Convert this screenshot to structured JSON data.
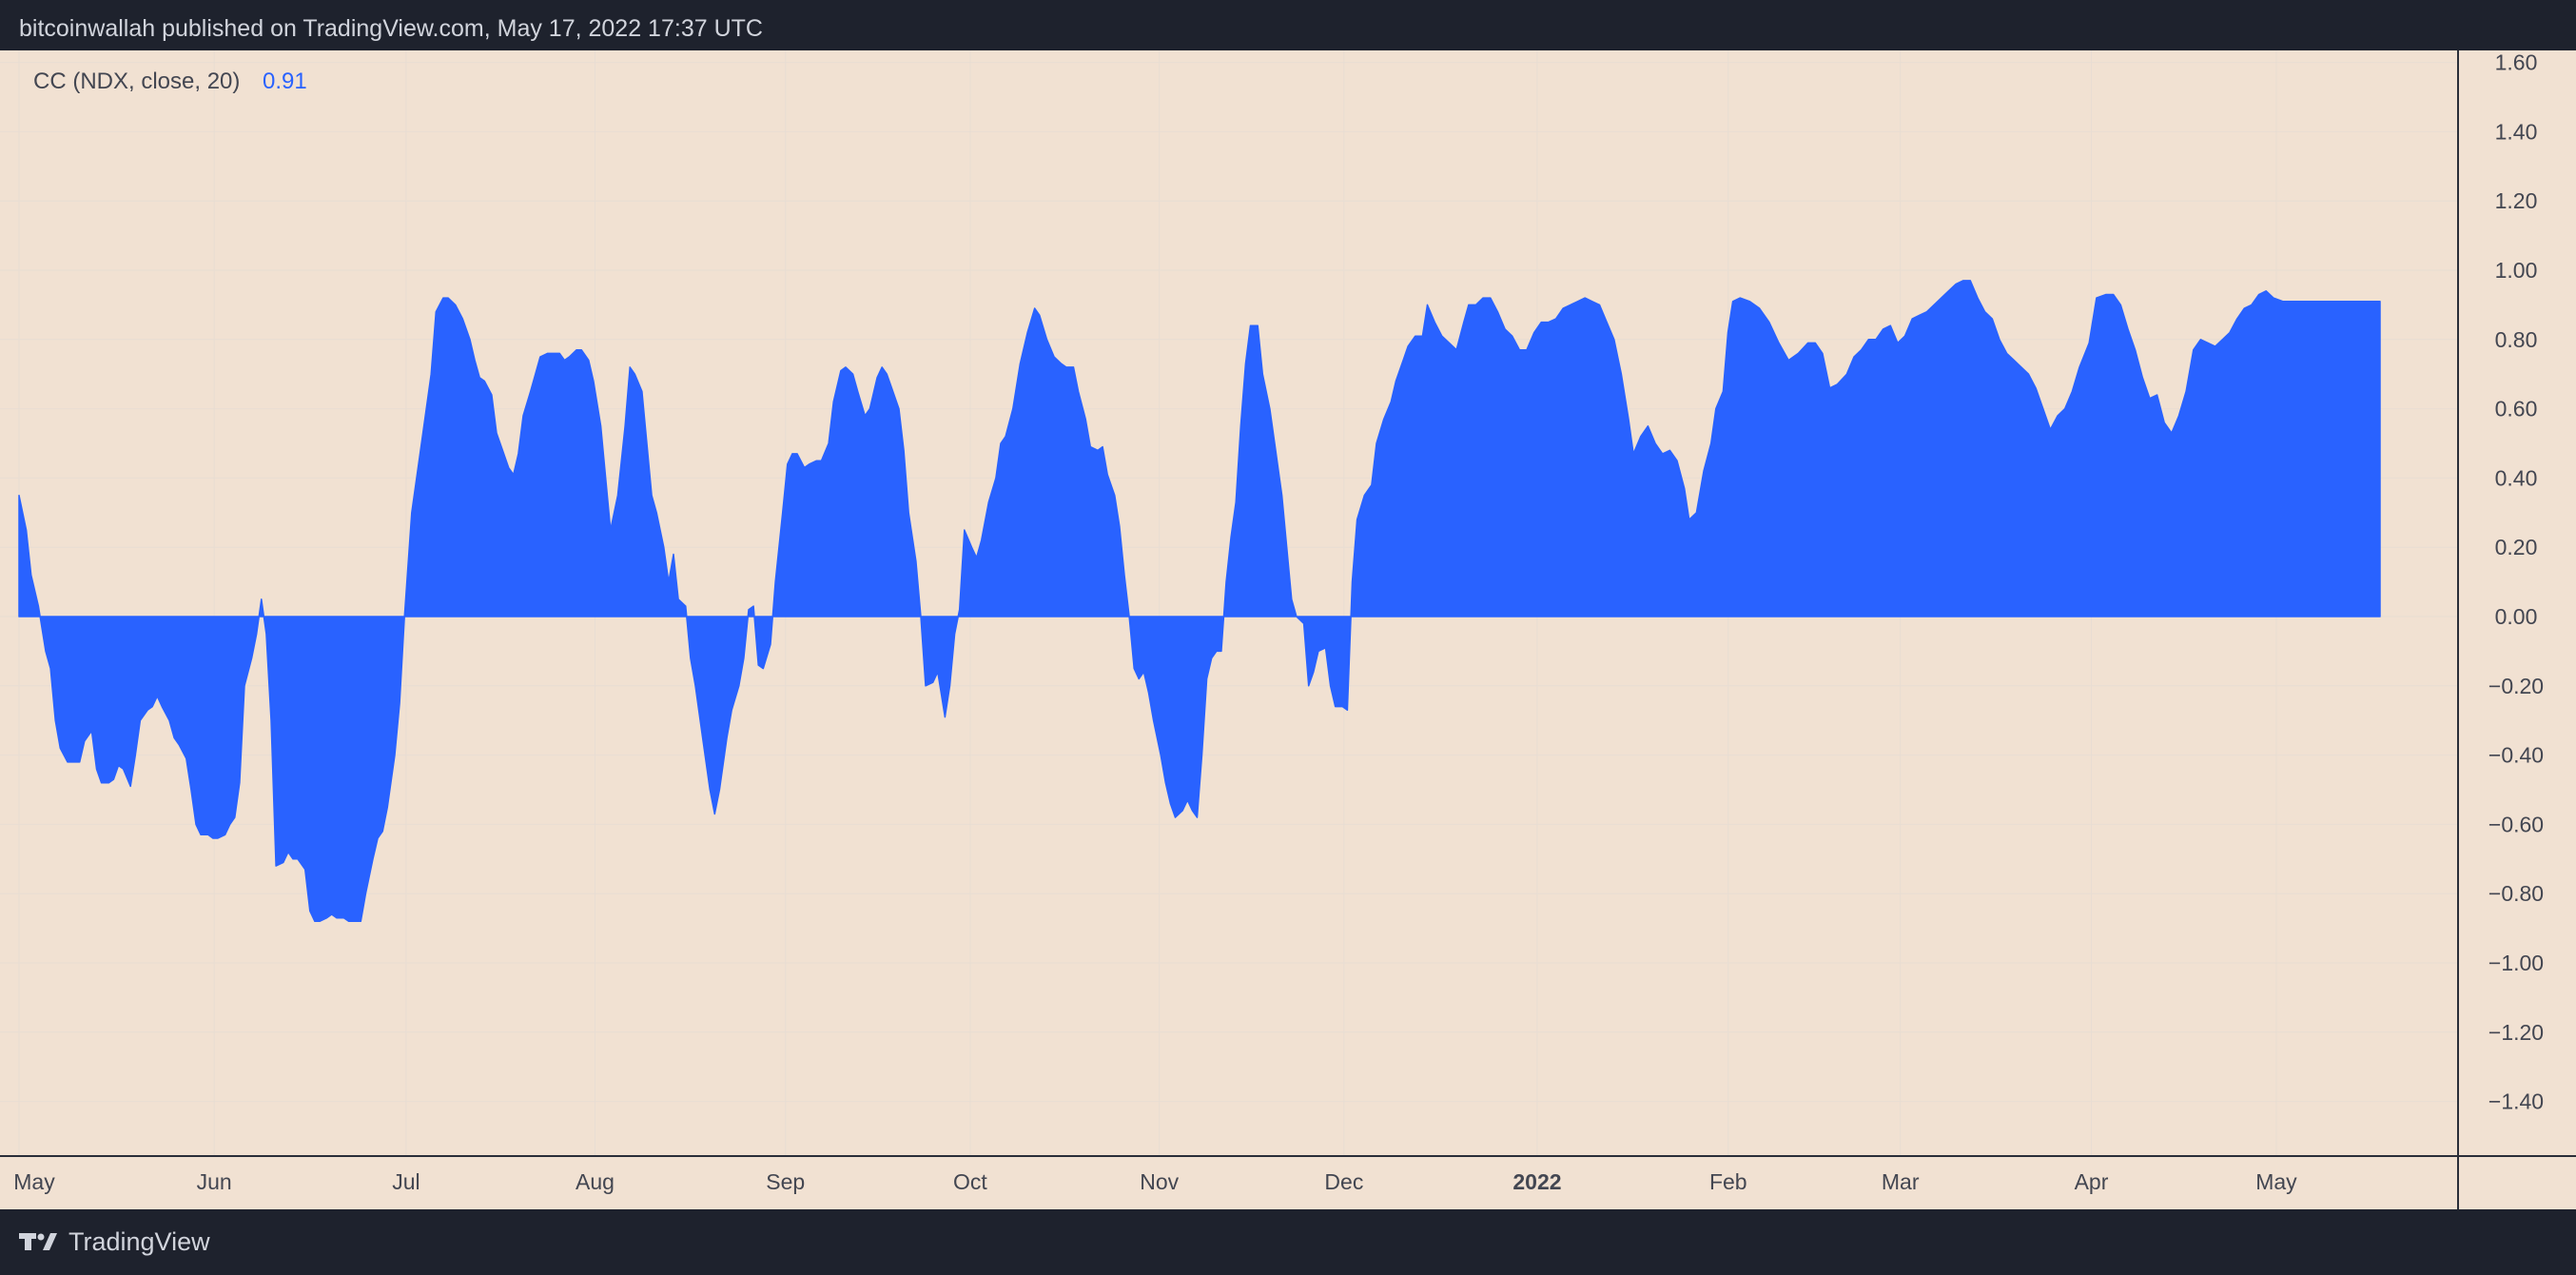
{
  "header": {
    "publisher": "bitcoinwallah published on TradingView.com, May 17, 2022 17:37 UTC"
  },
  "indicator": {
    "label": "CC (NDX, close, 20)",
    "value": "0.91"
  },
  "footer": {
    "brand": "TradingView"
  },
  "colors": {
    "background": "#1e222d",
    "plot_background": "#f1e1d2",
    "area_fill": "#2962ff",
    "value_text": "#2962ff",
    "grid": "#e8ddd3"
  },
  "chart_data": {
    "type": "area",
    "ylim": [
      -1.55,
      1.62
    ],
    "y_ticks": [
      "1.60",
      "1.40",
      "1.20",
      "1.00",
      "0.80",
      "0.60",
      "0.40",
      "0.20",
      "0.00",
      "−0.20",
      "−0.40",
      "−0.60",
      "−0.80",
      "−1.00",
      "−1.20",
      "−1.40"
    ],
    "y_tick_values": [
      1.6,
      1.4,
      1.2,
      1.0,
      0.8,
      0.6,
      0.4,
      0.2,
      0.0,
      -0.2,
      -0.4,
      -0.6,
      -0.8,
      -1.0,
      -1.2,
      -1.4
    ],
    "x_ticks": [
      {
        "label": "May",
        "t": 0.0
      },
      {
        "label": "Jun",
        "t": 0.0805
      },
      {
        "label": "Jul",
        "t": 0.1597
      },
      {
        "label": "Aug",
        "t": 0.2376
      },
      {
        "label": "Sep",
        "t": 0.3162
      },
      {
        "label": "Oct",
        "t": 0.3924
      },
      {
        "label": "Nov",
        "t": 0.4704
      },
      {
        "label": "Dec",
        "t": 0.5466
      },
      {
        "label": "2022",
        "t": 0.6263,
        "bold": true
      },
      {
        "label": "Feb",
        "t": 0.7051
      },
      {
        "label": "Mar",
        "t": 0.7761
      },
      {
        "label": "Apr",
        "t": 0.8549
      },
      {
        "label": "May",
        "t": 0.9312
      }
    ],
    "x_note": "x values are fractional time positions from early May 2021 (0) to the last bar mid-May 2022 (~0.974)",
    "points": [
      [
        0.0,
        0.35
      ],
      [
        0.003,
        0.25
      ],
      [
        0.005,
        0.12
      ],
      [
        0.008,
        0.03
      ],
      [
        0.011,
        -0.1
      ],
      [
        0.013,
        -0.15
      ],
      [
        0.015,
        -0.3
      ],
      [
        0.017,
        -0.38
      ],
      [
        0.02,
        -0.42
      ],
      [
        0.023,
        -0.42
      ],
      [
        0.025,
        -0.42
      ],
      [
        0.027,
        -0.36
      ],
      [
        0.03,
        -0.33
      ],
      [
        0.032,
        -0.44
      ],
      [
        0.034,
        -0.48
      ],
      [
        0.037,
        -0.48
      ],
      [
        0.039,
        -0.47
      ],
      [
        0.041,
        -0.43
      ],
      [
        0.043,
        -0.44
      ],
      [
        0.046,
        -0.49
      ],
      [
        0.048,
        -0.4
      ],
      [
        0.05,
        -0.3
      ],
      [
        0.053,
        -0.27
      ],
      [
        0.055,
        -0.26
      ],
      [
        0.057,
        -0.23
      ],
      [
        0.059,
        -0.26
      ],
      [
        0.062,
        -0.3
      ],
      [
        0.064,
        -0.35
      ],
      [
        0.066,
        -0.37
      ],
      [
        0.069,
        -0.41
      ],
      [
        0.071,
        -0.5
      ],
      [
        0.073,
        -0.6
      ],
      [
        0.075,
        -0.63
      ],
      [
        0.078,
        -0.63
      ],
      [
        0.08,
        -0.64
      ],
      [
        0.082,
        -0.64
      ],
      [
        0.085,
        -0.63
      ],
      [
        0.087,
        -0.6
      ],
      [
        0.089,
        -0.58
      ],
      [
        0.091,
        -0.48
      ],
      [
        0.093,
        -0.2
      ],
      [
        0.096,
        -0.12
      ],
      [
        0.098,
        -0.05
      ],
      [
        0.1,
        0.05
      ],
      [
        0.102,
        -0.05
      ],
      [
        0.104,
        -0.3
      ],
      [
        0.106,
        -0.72
      ],
      [
        0.109,
        -0.71
      ],
      [
        0.111,
        -0.68
      ],
      [
        0.113,
        -0.7
      ],
      [
        0.115,
        -0.7
      ],
      [
        0.118,
        -0.73
      ],
      [
        0.12,
        -0.85
      ],
      [
        0.122,
        -0.88
      ],
      [
        0.124,
        -0.88
      ],
      [
        0.127,
        -0.87
      ],
      [
        0.129,
        -0.86
      ],
      [
        0.131,
        -0.87
      ],
      [
        0.134,
        -0.87
      ],
      [
        0.136,
        -0.88
      ],
      [
        0.139,
        -0.88
      ],
      [
        0.141,
        -0.88
      ],
      [
        0.143,
        -0.8
      ],
      [
        0.146,
        -0.7
      ],
      [
        0.148,
        -0.64
      ],
      [
        0.15,
        -0.62
      ],
      [
        0.152,
        -0.55
      ],
      [
        0.155,
        -0.4
      ],
      [
        0.157,
        -0.25
      ],
      [
        0.159,
        0.0
      ],
      [
        0.162,
        0.3
      ],
      [
        0.165,
        0.45
      ],
      [
        0.167,
        0.55
      ],
      [
        0.17,
        0.7
      ],
      [
        0.172,
        0.88
      ],
      [
        0.175,
        0.92
      ],
      [
        0.177,
        0.92
      ],
      [
        0.18,
        0.9
      ],
      [
        0.183,
        0.86
      ],
      [
        0.186,
        0.8
      ],
      [
        0.188,
        0.74
      ],
      [
        0.19,
        0.69
      ],
      [
        0.192,
        0.68
      ],
      [
        0.195,
        0.64
      ],
      [
        0.197,
        0.53
      ],
      [
        0.199,
        0.49
      ],
      [
        0.202,
        0.43
      ],
      [
        0.204,
        0.41
      ],
      [
        0.206,
        0.47
      ],
      [
        0.208,
        0.58
      ],
      [
        0.211,
        0.65
      ],
      [
        0.213,
        0.7
      ],
      [
        0.215,
        0.75
      ],
      [
        0.218,
        0.76
      ],
      [
        0.22,
        0.76
      ],
      [
        0.223,
        0.76
      ],
      [
        0.225,
        0.74
      ],
      [
        0.227,
        0.75
      ],
      [
        0.23,
        0.77
      ],
      [
        0.232,
        0.77
      ],
      [
        0.235,
        0.74
      ],
      [
        0.237,
        0.68
      ],
      [
        0.24,
        0.55
      ],
      [
        0.242,
        0.4
      ],
      [
        0.244,
        0.25
      ],
      [
        0.247,
        0.35
      ],
      [
        0.25,
        0.55
      ],
      [
        0.252,
        0.72
      ],
      [
        0.254,
        0.7
      ],
      [
        0.257,
        0.65
      ],
      [
        0.259,
        0.5
      ],
      [
        0.261,
        0.35
      ],
      [
        0.263,
        0.3
      ],
      [
        0.266,
        0.2
      ],
      [
        0.268,
        0.1
      ],
      [
        0.27,
        0.18
      ],
      [
        0.272,
        0.05
      ],
      [
        0.275,
        0.03
      ],
      [
        0.277,
        -0.12
      ],
      [
        0.279,
        -0.2
      ],
      [
        0.282,
        -0.35
      ],
      [
        0.285,
        -0.5
      ],
      [
        0.287,
        -0.57
      ],
      [
        0.289,
        -0.5
      ],
      [
        0.292,
        -0.35
      ],
      [
        0.294,
        -0.27
      ],
      [
        0.297,
        -0.2
      ],
      [
        0.299,
        -0.12
      ],
      [
        0.301,
        0.02
      ],
      [
        0.303,
        0.03
      ],
      [
        0.305,
        -0.14
      ],
      [
        0.307,
        -0.15
      ],
      [
        0.31,
        -0.08
      ],
      [
        0.312,
        0.1
      ],
      [
        0.315,
        0.3
      ],
      [
        0.317,
        0.44
      ],
      [
        0.319,
        0.47
      ],
      [
        0.321,
        0.47
      ],
      [
        0.324,
        0.43
      ],
      [
        0.326,
        0.44
      ],
      [
        0.329,
        0.45
      ],
      [
        0.331,
        0.45
      ],
      [
        0.334,
        0.5
      ],
      [
        0.336,
        0.62
      ],
      [
        0.339,
        0.71
      ],
      [
        0.341,
        0.72
      ],
      [
        0.344,
        0.7
      ],
      [
        0.346,
        0.65
      ],
      [
        0.349,
        0.58
      ],
      [
        0.351,
        0.6
      ],
      [
        0.354,
        0.69
      ],
      [
        0.356,
        0.72
      ],
      [
        0.358,
        0.7
      ],
      [
        0.36,
        0.66
      ],
      [
        0.363,
        0.6
      ],
      [
        0.365,
        0.48
      ],
      [
        0.367,
        0.3
      ],
      [
        0.37,
        0.16
      ],
      [
        0.372,
        0.0
      ],
      [
        0.374,
        -0.2
      ],
      [
        0.377,
        -0.19
      ],
      [
        0.379,
        -0.16
      ],
      [
        0.382,
        -0.29
      ],
      [
        0.384,
        -0.2
      ],
      [
        0.386,
        -0.05
      ],
      [
        0.388,
        0.02
      ],
      [
        0.39,
        0.25
      ],
      [
        0.393,
        0.2
      ],
      [
        0.395,
        0.17
      ],
      [
        0.397,
        0.22
      ],
      [
        0.4,
        0.33
      ],
      [
        0.403,
        0.4
      ],
      [
        0.405,
        0.5
      ],
      [
        0.407,
        0.52
      ],
      [
        0.41,
        0.6
      ],
      [
        0.413,
        0.73
      ],
      [
        0.416,
        0.82
      ],
      [
        0.419,
        0.89
      ],
      [
        0.421,
        0.87
      ],
      [
        0.424,
        0.8
      ],
      [
        0.427,
        0.75
      ],
      [
        0.43,
        0.73
      ],
      [
        0.432,
        0.72
      ],
      [
        0.435,
        0.72
      ],
      [
        0.437,
        0.65
      ],
      [
        0.44,
        0.57
      ],
      [
        0.442,
        0.49
      ],
      [
        0.445,
        0.48
      ],
      [
        0.447,
        0.49
      ],
      [
        0.449,
        0.41
      ],
      [
        0.452,
        0.35
      ],
      [
        0.454,
        0.26
      ],
      [
        0.456,
        0.12
      ],
      [
        0.458,
        0.0
      ],
      [
        0.46,
        -0.15
      ],
      [
        0.462,
        -0.18
      ],
      [
        0.464,
        -0.16
      ],
      [
        0.466,
        -0.22
      ],
      [
        0.468,
        -0.3
      ],
      [
        0.471,
        -0.4
      ],
      [
        0.473,
        -0.48
      ],
      [
        0.475,
        -0.54
      ],
      [
        0.477,
        -0.58
      ],
      [
        0.48,
        -0.56
      ],
      [
        0.482,
        -0.53
      ],
      [
        0.484,
        -0.56
      ],
      [
        0.486,
        -0.58
      ],
      [
        0.488,
        -0.4
      ],
      [
        0.49,
        -0.18
      ],
      [
        0.492,
        -0.12
      ],
      [
        0.494,
        -0.1
      ],
      [
        0.496,
        -0.1
      ],
      [
        0.498,
        0.1
      ],
      [
        0.5,
        0.23
      ],
      [
        0.502,
        0.33
      ],
      [
        0.504,
        0.55
      ],
      [
        0.506,
        0.73
      ],
      [
        0.508,
        0.84
      ],
      [
        0.511,
        0.84
      ],
      [
        0.513,
        0.7
      ],
      [
        0.516,
        0.6
      ],
      [
        0.518,
        0.5
      ],
      [
        0.521,
        0.35
      ],
      [
        0.523,
        0.2
      ],
      [
        0.525,
        0.05
      ],
      [
        0.527,
        0.0
      ],
      [
        0.53,
        -0.02
      ],
      [
        0.532,
        -0.2
      ],
      [
        0.534,
        -0.16
      ],
      [
        0.536,
        -0.1
      ],
      [
        0.539,
        -0.09
      ],
      [
        0.541,
        -0.2
      ],
      [
        0.543,
        -0.26
      ],
      [
        0.546,
        -0.26
      ],
      [
        0.548,
        -0.27
      ],
      [
        0.55,
        0.1
      ],
      [
        0.552,
        0.28
      ],
      [
        0.555,
        0.35
      ],
      [
        0.558,
        0.38
      ],
      [
        0.56,
        0.5
      ],
      [
        0.563,
        0.57
      ],
      [
        0.566,
        0.62
      ],
      [
        0.568,
        0.68
      ],
      [
        0.571,
        0.74
      ],
      [
        0.573,
        0.78
      ],
      [
        0.576,
        0.81
      ],
      [
        0.579,
        0.81
      ],
      [
        0.581,
        0.9
      ],
      [
        0.584,
        0.85
      ],
      [
        0.587,
        0.81
      ],
      [
        0.59,
        0.79
      ],
      [
        0.593,
        0.77
      ],
      [
        0.596,
        0.85
      ],
      [
        0.598,
        0.9
      ],
      [
        0.601,
        0.9
      ],
      [
        0.604,
        0.92
      ],
      [
        0.607,
        0.92
      ],
      [
        0.61,
        0.88
      ],
      [
        0.613,
        0.83
      ],
      [
        0.616,
        0.81
      ],
      [
        0.619,
        0.77
      ],
      [
        0.622,
        0.77
      ],
      [
        0.625,
        0.82
      ],
      [
        0.628,
        0.85
      ],
      [
        0.631,
        0.85
      ],
      [
        0.634,
        0.86
      ],
      [
        0.637,
        0.89
      ],
      [
        0.64,
        0.9
      ],
      [
        0.643,
        0.91
      ],
      [
        0.646,
        0.92
      ],
      [
        0.649,
        0.91
      ],
      [
        0.652,
        0.9
      ],
      [
        0.655,
        0.85
      ],
      [
        0.658,
        0.8
      ],
      [
        0.661,
        0.7
      ],
      [
        0.664,
        0.57
      ],
      [
        0.666,
        0.47
      ],
      [
        0.669,
        0.52
      ],
      [
        0.672,
        0.55
      ],
      [
        0.675,
        0.5
      ],
      [
        0.678,
        0.47
      ],
      [
        0.681,
        0.48
      ],
      [
        0.684,
        0.45
      ],
      [
        0.687,
        0.37
      ],
      [
        0.689,
        0.28
      ],
      [
        0.692,
        0.3
      ],
      [
        0.695,
        0.42
      ],
      [
        0.698,
        0.5
      ],
      [
        0.7,
        0.6
      ],
      [
        0.703,
        0.65
      ],
      [
        0.705,
        0.82
      ],
      [
        0.707,
        0.91
      ],
      [
        0.71,
        0.92
      ],
      [
        0.714,
        0.91
      ],
      [
        0.718,
        0.89
      ],
      [
        0.722,
        0.85
      ],
      [
        0.726,
        0.79
      ],
      [
        0.73,
        0.74
      ],
      [
        0.734,
        0.76
      ],
      [
        0.738,
        0.79
      ],
      [
        0.741,
        0.79
      ],
      [
        0.744,
        0.76
      ],
      [
        0.747,
        0.66
      ],
      [
        0.75,
        0.67
      ],
      [
        0.754,
        0.7
      ],
      [
        0.757,
        0.75
      ],
      [
        0.76,
        0.77
      ],
      [
        0.763,
        0.8
      ],
      [
        0.766,
        0.8
      ],
      [
        0.769,
        0.83
      ],
      [
        0.772,
        0.84
      ],
      [
        0.775,
        0.79
      ],
      [
        0.778,
        0.81
      ],
      [
        0.781,
        0.86
      ],
      [
        0.784,
        0.87
      ],
      [
        0.787,
        0.88
      ],
      [
        0.79,
        0.9
      ],
      [
        0.793,
        0.92
      ],
      [
        0.796,
        0.94
      ],
      [
        0.799,
        0.96
      ],
      [
        0.802,
        0.97
      ],
      [
        0.805,
        0.97
      ],
      [
        0.808,
        0.92
      ],
      [
        0.811,
        0.88
      ],
      [
        0.814,
        0.86
      ],
      [
        0.817,
        0.8
      ],
      [
        0.82,
        0.76
      ],
      [
        0.823,
        0.74
      ],
      [
        0.826,
        0.72
      ],
      [
        0.829,
        0.7
      ],
      [
        0.832,
        0.66
      ],
      [
        0.835,
        0.6
      ],
      [
        0.838,
        0.54
      ],
      [
        0.841,
        0.58
      ],
      [
        0.844,
        0.6
      ],
      [
        0.847,
        0.65
      ],
      [
        0.85,
        0.72
      ],
      [
        0.854,
        0.79
      ],
      [
        0.857,
        0.92
      ],
      [
        0.861,
        0.93
      ],
      [
        0.864,
        0.93
      ],
      [
        0.867,
        0.9
      ],
      [
        0.87,
        0.83
      ],
      [
        0.873,
        0.77
      ],
      [
        0.876,
        0.69
      ],
      [
        0.879,
        0.63
      ],
      [
        0.882,
        0.64
      ],
      [
        0.885,
        0.56
      ],
      [
        0.888,
        0.53
      ],
      [
        0.891,
        0.58
      ],
      [
        0.894,
        0.65
      ],
      [
        0.897,
        0.77
      ],
      [
        0.9,
        0.8
      ],
      [
        0.903,
        0.79
      ],
      [
        0.906,
        0.78
      ],
      [
        0.909,
        0.8
      ],
      [
        0.912,
        0.82
      ],
      [
        0.915,
        0.86
      ],
      [
        0.918,
        0.89
      ],
      [
        0.921,
        0.9
      ],
      [
        0.924,
        0.93
      ],
      [
        0.927,
        0.94
      ],
      [
        0.93,
        0.92
      ],
      [
        0.934,
        0.91
      ],
      [
        0.938,
        0.91
      ],
      [
        0.942,
        0.91
      ],
      [
        0.946,
        0.91
      ],
      [
        0.95,
        0.91
      ],
      [
        0.955,
        0.91
      ],
      [
        0.96,
        0.91
      ],
      [
        0.965,
        0.91
      ],
      [
        0.974,
        0.91
      ]
    ]
  }
}
